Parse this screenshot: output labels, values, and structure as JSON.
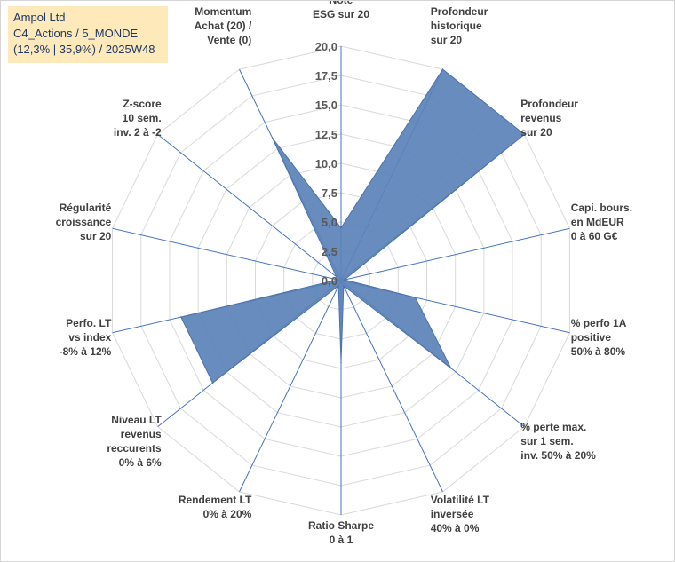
{
  "info": {
    "company": "Ampol Ltd",
    "portfolio": "C4_Actions / 5_MONDE",
    "stats": "(12,3% | 35,9%) / 2025W48"
  },
  "colors": {
    "fill": "#5b82b8",
    "stroke": "#4a72ab",
    "spoke": "#4472c4",
    "ring": "#d9d9d9",
    "label": "#404040"
  },
  "chart_data": {
    "type": "radar",
    "title": "",
    "rmin": 0,
    "rmax": 20,
    "ticks": [
      "0,0",
      "2,5",
      "5,0",
      "7,5",
      "10,0",
      "12,5",
      "15,0",
      "17,5",
      "20,0"
    ],
    "axes": [
      {
        "label": [
          "Note",
          "ESG sur 20"
        ],
        "value": 4.5
      },
      {
        "label": [
          "Profondeur",
          "historique",
          "sur 20"
        ],
        "value": 20
      },
      {
        "label": [
          "Profondeur",
          "revenus",
          "sur 20"
        ],
        "value": 20
      },
      {
        "label": [
          "Capi. bours.",
          "en MdEUR",
          "0 à 60 G€"
        ],
        "value": 0.3
      },
      {
        "label": [
          "% perfo 1A",
          "positive",
          "50% à 80%"
        ],
        "value": 6.5
      },
      {
        "label": [
          "% perte max.",
          "sur 1 sem.",
          "inv. 50% à 20%"
        ],
        "value": 12
      },
      {
        "label": [
          "Volatilité LT",
          "inversée",
          "40% à 0%"
        ],
        "value": 0.5
      },
      {
        "label": [
          "Ratio Sharpe",
          "0 à 1"
        ],
        "value": 7
      },
      {
        "label": [
          "Rendement LT",
          "0% à 20%"
        ],
        "value": 0.5
      },
      {
        "label": [
          "Niveau LT",
          "revenus",
          "reccurents",
          "0% à 6%"
        ],
        "value": 14
      },
      {
        "label": [
          "Perfo. LT",
          "vs index",
          "-8% à 12%"
        ],
        "value": 14
      },
      {
        "label": [
          "Régularité",
          "croissance",
          "sur 20"
        ],
        "value": 0.3
      },
      {
        "label": [
          "Z-score",
          "10 sem.",
          "inv. 2 à -2"
        ],
        "value": 0.5
      },
      {
        "label": [
          "Momentum",
          "Achat (20) /",
          "Vente (0)"
        ],
        "value": 13.5
      }
    ]
  }
}
